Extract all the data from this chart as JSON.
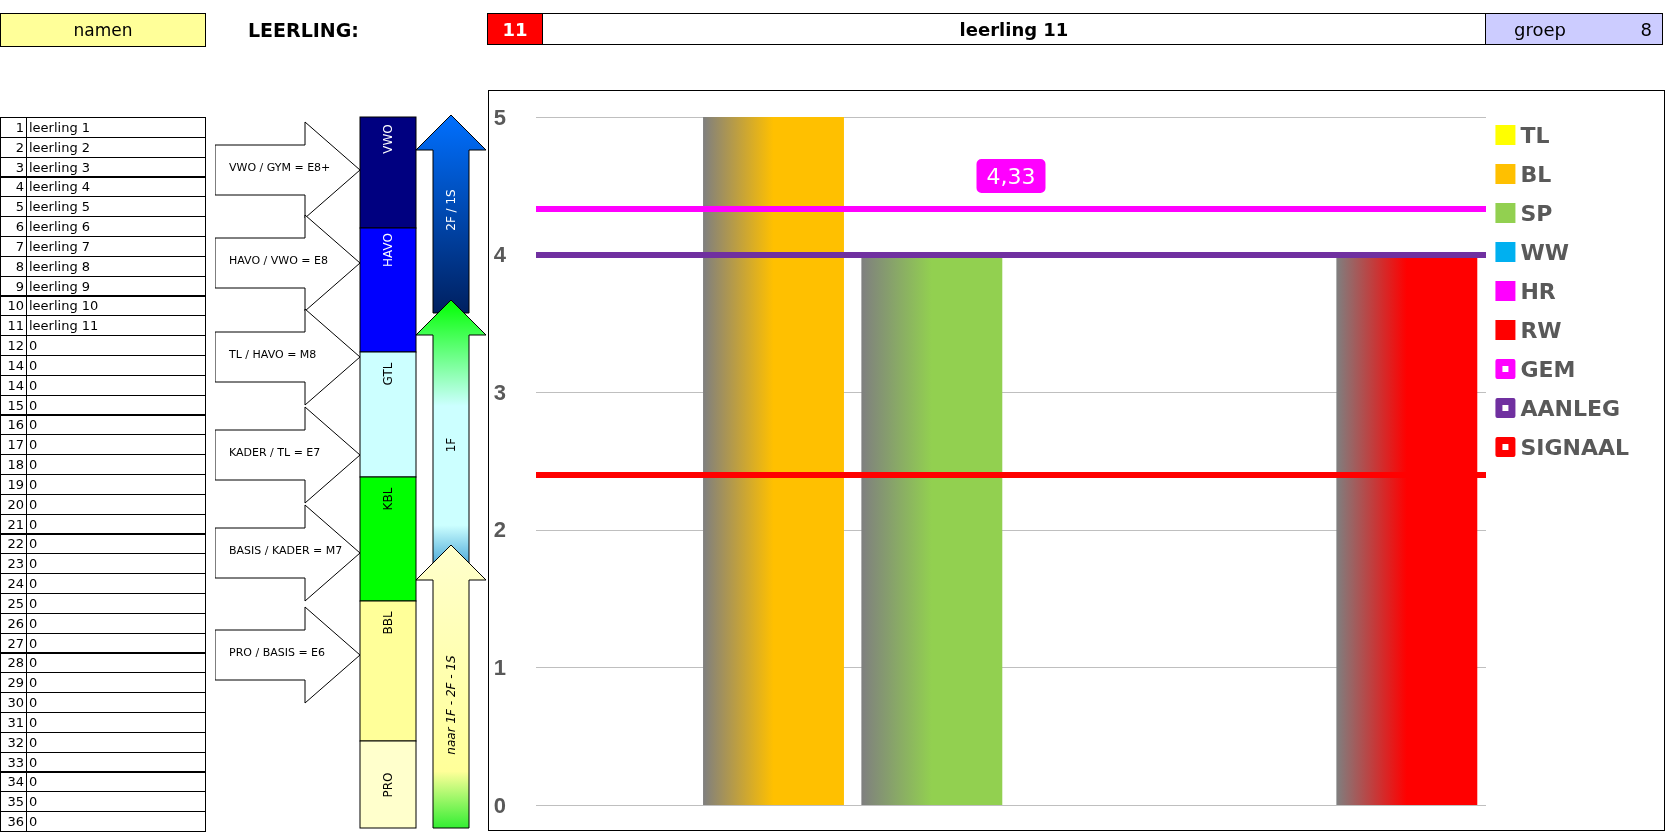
{
  "chart_data": [
    {
      "type": "other",
      "annotations": [
        "namen",
        "LEERLING:",
        "11",
        "leerling 11",
        "groep",
        "8"
      ]
    },
    {
      "type": "other",
      "annotations": [
        "1",
        "leerling 1",
        "2",
        "leerling 2",
        "3",
        "leerling 3",
        "4",
        "leerling 4",
        "5",
        "leerling 5",
        "6",
        "leerling 6",
        "7",
        "leerling 7",
        "8",
        "leerling 8",
        "9",
        "leerling 9",
        "10",
        "leerling 10",
        "11",
        "leerling 11",
        "12",
        "0",
        "14",
        "0",
        "14",
        "0",
        "15",
        "0",
        "16",
        "0",
        "17",
        "0",
        "18",
        "0",
        "19",
        "0",
        "20",
        "0",
        "21",
        "0",
        "22",
        "0",
        "23",
        "0",
        "24",
        "0",
        "25",
        "0",
        "26",
        "0",
        "27",
        "0",
        "28",
        "0",
        "29",
        "0",
        "30",
        "0",
        "31",
        "0",
        "32",
        "0",
        "33",
        "0",
        "34",
        "0",
        "35",
        "0",
        "36",
        "0"
      ]
    },
    {
      "type": "other",
      "annotations": [
        "VWO / GYM  = E8+",
        "HAVO / VWO = E8",
        "TL / HAVO = M8",
        "KADER / TL = E7",
        "BASIS / KADER = M7",
        "PRO / BASIS = E6",
        "VWO",
        "HAVO",
        "GTL",
        "KBL",
        "BBL",
        "PRO",
        "2F / 1S",
        "1F",
        "naar 1F - 2F - 1S"
      ]
    },
    {
      "type": "bar",
      "categories": [
        null,
        null,
        null,
        null,
        null,
        null
      ],
      "series": [
        {
          "name": "TL",
          "color": "#ffff00",
          "values": [
            0,
            null,
            null,
            null,
            null,
            null
          ]
        },
        {
          "name": "BL",
          "color": "#ffc000",
          "values": [
            null,
            5,
            null,
            null,
            null,
            null
          ]
        },
        {
          "name": "SP",
          "color": "#92d050",
          "values": [
            null,
            null,
            4,
            null,
            null,
            null
          ]
        },
        {
          "name": "WW",
          "color": "#00b0f0",
          "values": [
            null,
            null,
            null,
            0,
            null,
            null
          ]
        },
        {
          "name": "HR",
          "color": "#ff00ff",
          "values": [
            null,
            null,
            null,
            null,
            0,
            null
          ]
        },
        {
          "name": "RW",
          "color": "#ff0000",
          "values": [
            null,
            null,
            null,
            null,
            null,
            4
          ]
        }
      ],
      "ylim": [
        0,
        5
      ],
      "yticks": [
        0,
        1,
        2,
        3,
        4,
        5
      ],
      "grid": "y",
      "tick_labels": "y",
      "legend": "right",
      "ref_lines": [
        {
          "axis": "y",
          "value": 4.33,
          "label": "GEM",
          "color": "#ff00ff"
        },
        {
          "axis": "y",
          "value": 4,
          "label": "AANLEG",
          "color": "#7030a0"
        },
        {
          "axis": "y",
          "value": 2.4,
          "label": "SIGNAAL",
          "color": "#ff0000"
        }
      ],
      "annotations": [
        "4,33"
      ]
    }
  ]
}
